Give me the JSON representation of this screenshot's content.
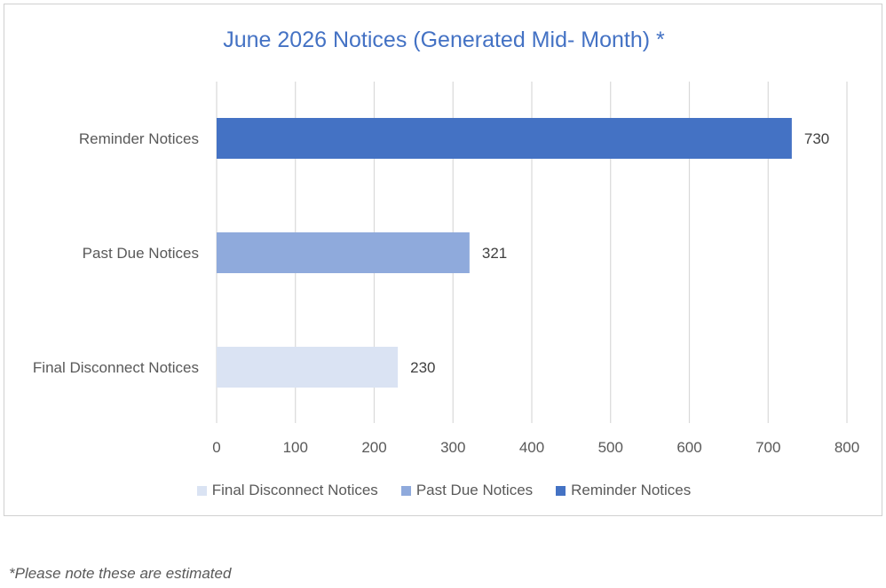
{
  "chart_data": {
    "type": "bar",
    "orientation": "horizontal",
    "title": "June 2026 Notices (Generated Mid- Month) *",
    "categories": [
      "Reminder Notices",
      "Past Due Notices",
      "Final Disconnect Notices"
    ],
    "values": [
      730,
      321,
      230
    ],
    "data_labels": [
      "730",
      "321",
      "230"
    ],
    "colors": [
      "#4472c4",
      "#8faadc",
      "#dae3f3"
    ],
    "xlim": [
      0,
      800
    ],
    "xticks": [
      0,
      100,
      200,
      300,
      400,
      500,
      600,
      700,
      800
    ],
    "xtick_labels": [
      "0",
      "100",
      "200",
      "300",
      "400",
      "500",
      "600",
      "700",
      "800"
    ],
    "grid": "vertical",
    "legend_position": "bottom",
    "legend": [
      {
        "label": "Final Disconnect Notices",
        "color": "#dae3f3"
      },
      {
        "label": "Past Due Notices",
        "color": "#8faadc"
      },
      {
        "label": "Reminder Notices",
        "color": "#4472c4"
      }
    ]
  },
  "footnote": "*Please note these are estimated"
}
